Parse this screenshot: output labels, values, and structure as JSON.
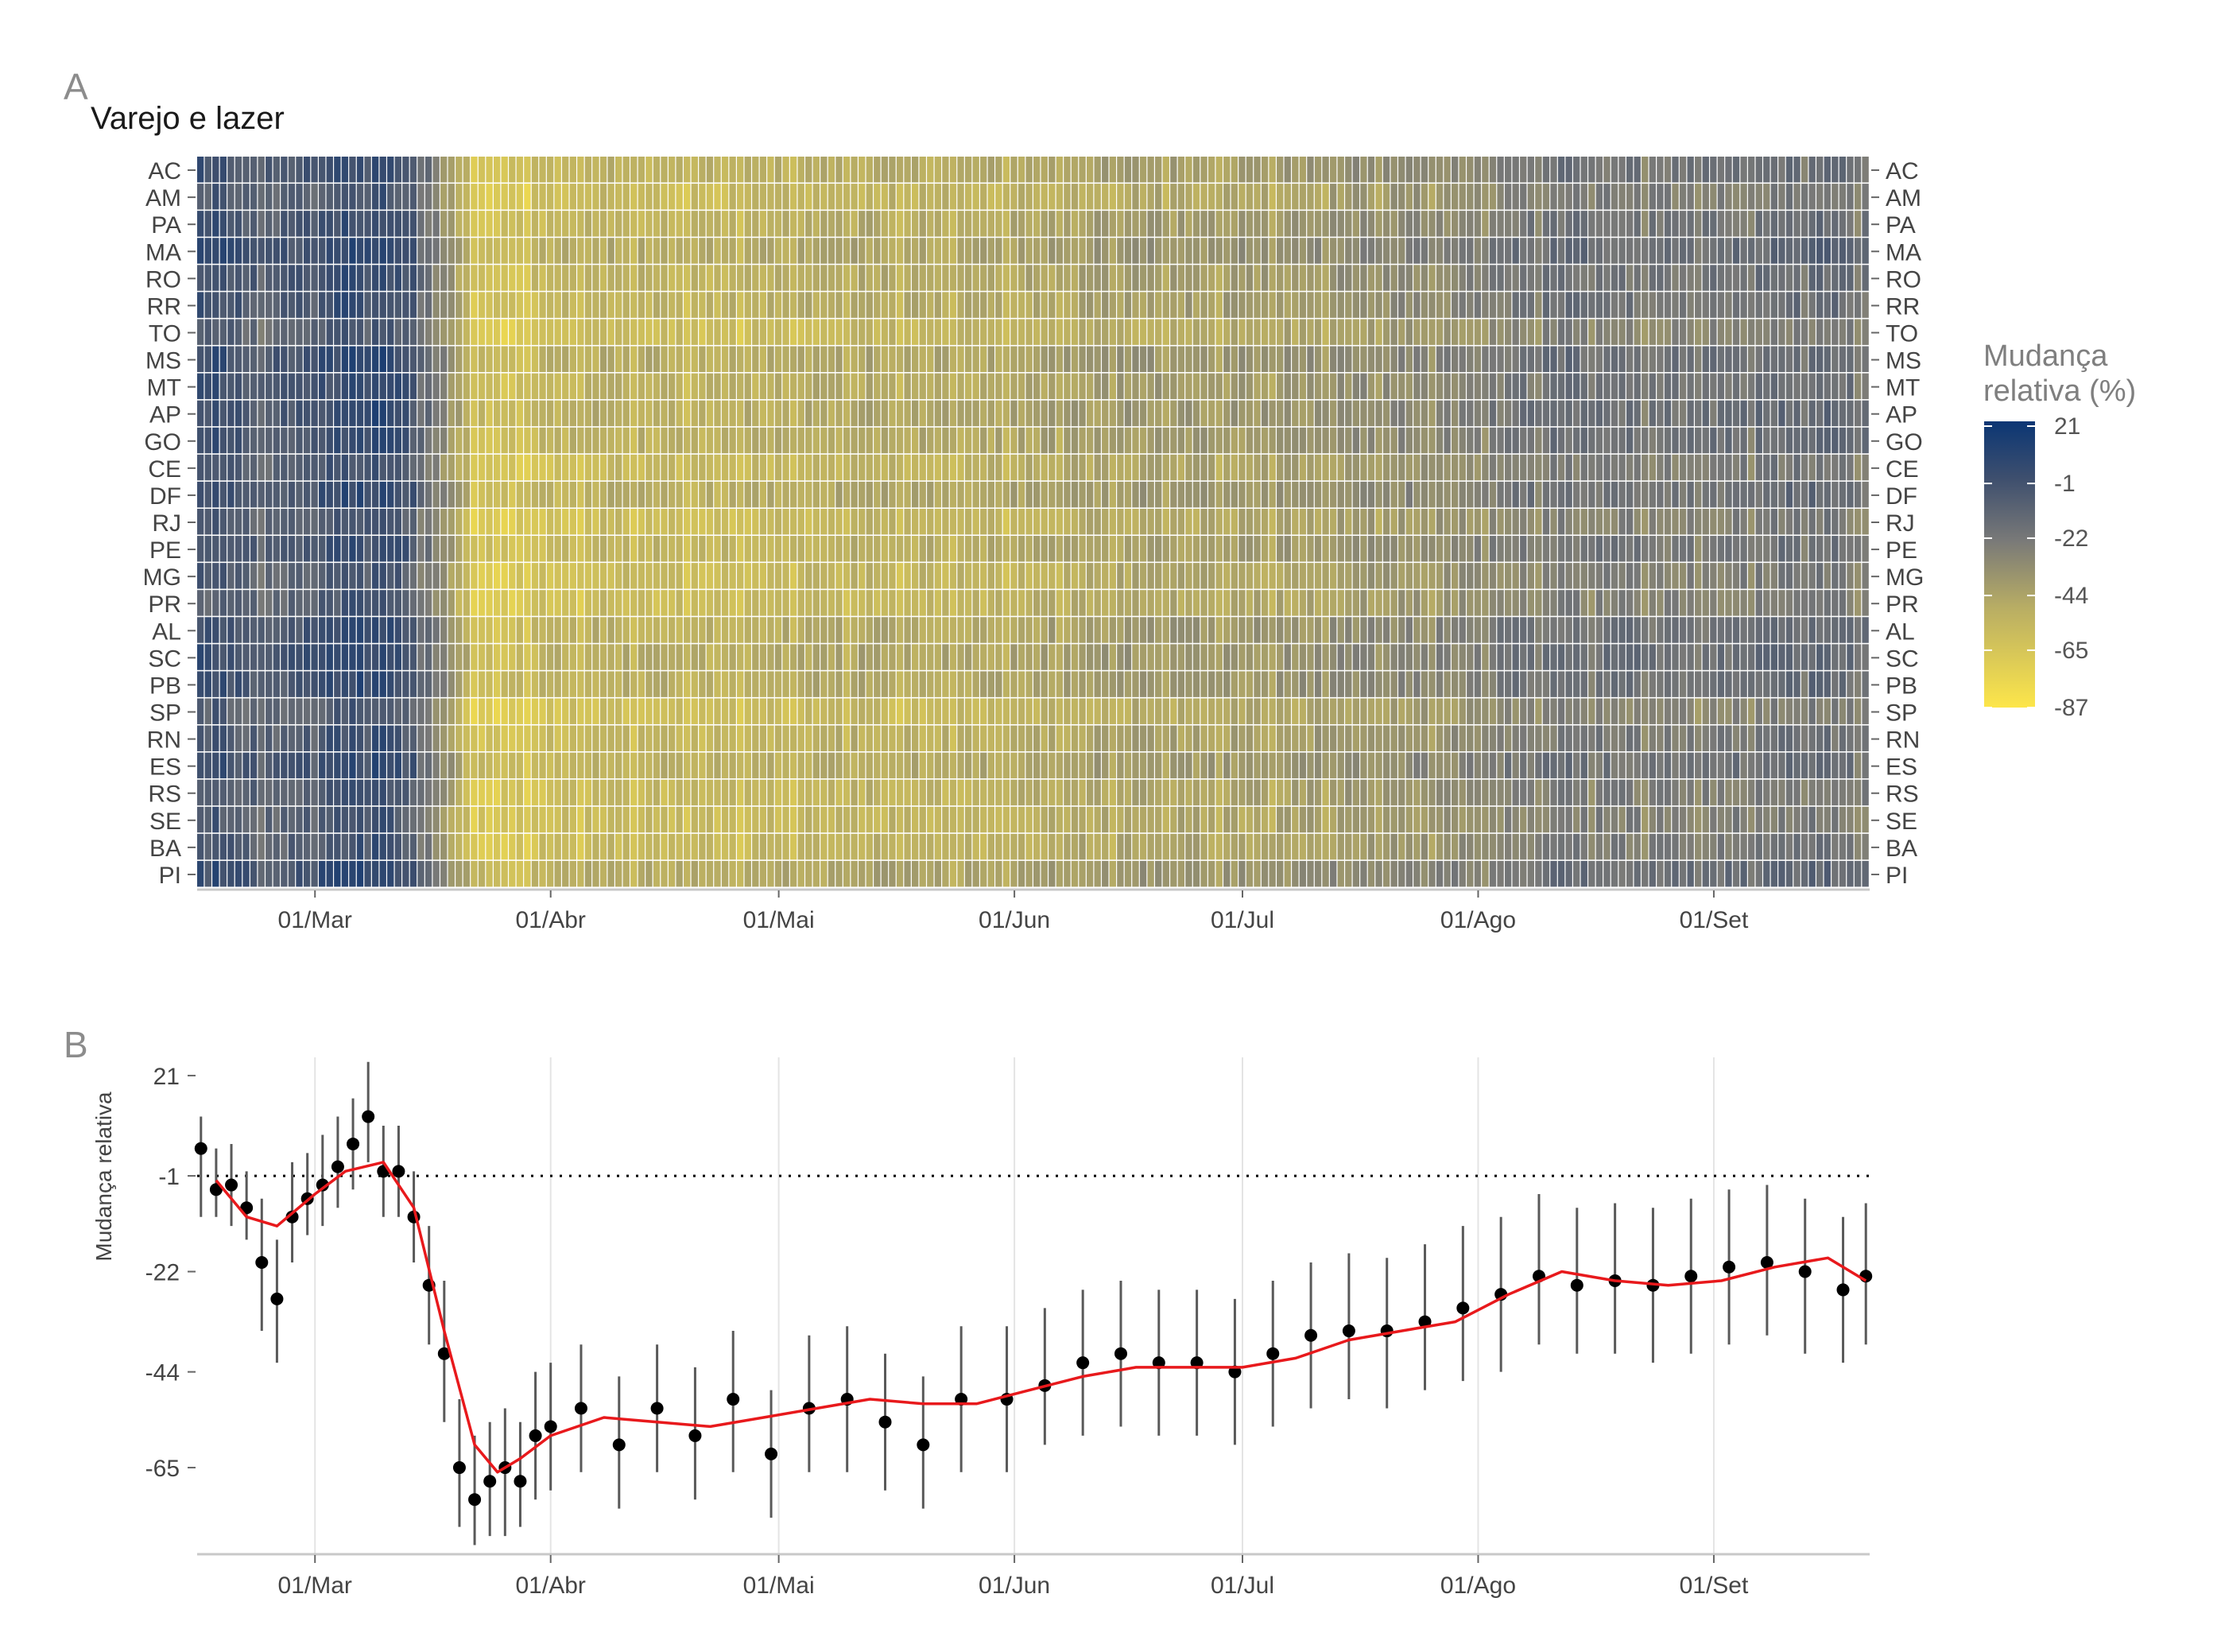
{
  "panel_a": {
    "tag": "A",
    "title": "Varejo e lazer",
    "states": [
      "AC",
      "AM",
      "PA",
      "MA",
      "RO",
      "RR",
      "TO",
      "MS",
      "MT",
      "AP",
      "GO",
      "CE",
      "DF",
      "RJ",
      "PE",
      "MG",
      "PR",
      "AL",
      "SC",
      "PB",
      "SP",
      "RN",
      "ES",
      "RS",
      "SE",
      "BA",
      "PI"
    ],
    "x_ticks": [
      "01/Mar",
      "01/Abr",
      "01/Mai",
      "01/Jun",
      "01/Jul",
      "01/Ago",
      "01/Set"
    ],
    "legend_title": [
      "Mudança",
      "relativa (%)"
    ],
    "legend_ticks": [
      21,
      -1,
      -22,
      -44,
      -65,
      -87
    ],
    "colors": {
      "high": "#0b3674",
      "mid": "#7a7a78",
      "low": "#fde64a",
      "grid": "#ffffff"
    }
  },
  "panel_b": {
    "tag": "B",
    "y_label": "Mudança relativa",
    "y_ticks": [
      21,
      -1,
      -22,
      -44,
      -65
    ],
    "x_ticks": [
      "01/Mar",
      "01/Abr",
      "01/Mai",
      "01/Jun",
      "01/Jul",
      "01/Ago",
      "01/Set"
    ],
    "reference_line": -1,
    "colors": {
      "points": "#000000",
      "range_bars": "#595959",
      "trend": "#e8191c",
      "reference": "#000000"
    }
  },
  "chart_data": [
    {
      "type": "heatmap",
      "title": "Varejo e lazer",
      "x_range": [
        "2020-02-15",
        "2020-09-21"
      ],
      "x_ticks": [
        "01/Mar",
        "01/Abr",
        "01/Mai",
        "01/Jun",
        "01/Jul",
        "01/Ago",
        "01/Set"
      ],
      "y_categories": [
        "AC",
        "AM",
        "PA",
        "MA",
        "RO",
        "RR",
        "TO",
        "MS",
        "MT",
        "AP",
        "GO",
        "CE",
        "DF",
        "RJ",
        "PE",
        "MG",
        "PR",
        "AL",
        "SC",
        "PB",
        "SP",
        "RN",
        "ES",
        "RS",
        "SE",
        "BA",
        "PI"
      ],
      "color_scale": {
        "min": -87,
        "max": 21,
        "ticks": [
          21,
          -1,
          -22,
          -44,
          -65,
          -87
        ]
      },
      "phase_means": [
        {
          "from": "2020-02-15",
          "to": "2020-03-15",
          "value": 3
        },
        {
          "from": "2020-03-20",
          "to": "2020-04-15",
          "value": -65
        },
        {
          "from": "2020-04-15",
          "to": "2020-06-01",
          "value": -55
        },
        {
          "from": "2020-06-01",
          "to": "2020-07-01",
          "value": -42
        },
        {
          "from": "2020-07-01",
          "to": "2020-08-01",
          "value": -32
        },
        {
          "from": "2020-08-01",
          "to": "2020-09-21",
          "value": -25
        }
      ],
      "legend": {
        "title": "Mudança relativa (%)",
        "position": "right"
      }
    },
    {
      "type": "scatter",
      "x_range": [
        "2020-02-15",
        "2020-09-21"
      ],
      "x_ticks": [
        "01/Mar",
        "01/Abr",
        "01/Mai",
        "01/Jun",
        "01/Jul",
        "01/Ago",
        "01/Set"
      ],
      "y_label": "Mudança relativa",
      "y_ticks": [
        21,
        -1,
        -22,
        -44,
        -65
      ],
      "ylim": [
        -84,
        25
      ],
      "reference_line": -1,
      "series": [
        {
          "kind": "points_with_ranges",
          "x": [
            "2020-02-15",
            "2020-02-17",
            "2020-02-19",
            "2020-02-21",
            "2020-02-23",
            "2020-02-25",
            "2020-02-27",
            "2020-02-29",
            "2020-03-02",
            "2020-03-04",
            "2020-03-06",
            "2020-03-08",
            "2020-03-10",
            "2020-03-12",
            "2020-03-14",
            "2020-03-16",
            "2020-03-18",
            "2020-03-20",
            "2020-03-22",
            "2020-03-24",
            "2020-03-26",
            "2020-03-28",
            "2020-03-30",
            "2020-04-01",
            "2020-04-05",
            "2020-04-10",
            "2020-04-15",
            "2020-04-20",
            "2020-04-25",
            "2020-04-30",
            "2020-05-05",
            "2020-05-10",
            "2020-05-15",
            "2020-05-20",
            "2020-05-25",
            "2020-05-31",
            "2020-06-05",
            "2020-06-10",
            "2020-06-15",
            "2020-06-20",
            "2020-06-25",
            "2020-06-30",
            "2020-07-05",
            "2020-07-10",
            "2020-07-15",
            "2020-07-20",
            "2020-07-25",
            "2020-07-30",
            "2020-08-04",
            "2020-08-09",
            "2020-08-14",
            "2020-08-19",
            "2020-08-24",
            "2020-08-29",
            "2020-09-03",
            "2020-09-08",
            "2020-09-13",
            "2020-09-18",
            "2020-09-21"
          ],
          "y": [
            5,
            -4,
            -3,
            -8,
            -20,
            -28,
            -10,
            -6,
            -3,
            1,
            6,
            12,
            0,
            0,
            -10,
            -25,
            -40,
            -65,
            -72,
            -68,
            -65,
            -68,
            -58,
            -56,
            -52,
            -60,
            -52,
            -58,
            -50,
            -62,
            -52,
            -50,
            -55,
            -60,
            -50,
            -50,
            -47,
            -42,
            -40,
            -42,
            -42,
            -44,
            -40,
            -36,
            -35,
            -35,
            -33,
            -30,
            -27,
            -23,
            -25,
            -24,
            -25,
            -23,
            -21,
            -20,
            -22,
            -26,
            -23
          ],
          "low": [
            -10,
            -10,
            -12,
            -15,
            -35,
            -42,
            -20,
            -14,
            -12,
            -8,
            -4,
            2,
            -10,
            -10,
            -20,
            -38,
            -55,
            -78,
            -82,
            -80,
            -80,
            -78,
            -72,
            -70,
            -66,
            -74,
            -66,
            -72,
            -66,
            -76,
            -66,
            -66,
            -70,
            -74,
            -66,
            -66,
            -60,
            -58,
            -56,
            -58,
            -58,
            -60,
            -56,
            -52,
            -50,
            -52,
            -48,
            -46,
            -44,
            -38,
            -40,
            -40,
            -42,
            -40,
            -38,
            -36,
            -40,
            -42,
            -38
          ],
          "high": [
            12,
            5,
            6,
            0,
            -6,
            -15,
            2,
            4,
            8,
            12,
            16,
            24,
            10,
            10,
            0,
            -12,
            -24,
            -50,
            -58,
            -55,
            -52,
            -55,
            -44,
            -42,
            -38,
            -45,
            -38,
            -43,
            -35,
            -48,
            -36,
            -34,
            -40,
            -45,
            -34,
            -34,
            -30,
            -26,
            -24,
            -26,
            -26,
            -28,
            -24,
            -20,
            -18,
            -19,
            -16,
            -12,
            -10,
            -5,
            -8,
            -7,
            -8,
            -6,
            -4,
            -3,
            -6,
            -10,
            -7
          ]
        },
        {
          "kind": "trend",
          "x": [
            "2020-02-17",
            "2020-02-21",
            "2020-02-25",
            "2020-03-01",
            "2020-03-05",
            "2020-03-10",
            "2020-03-14",
            "2020-03-18",
            "2020-03-22",
            "2020-03-25",
            "2020-03-28",
            "2020-04-01",
            "2020-04-08",
            "2020-04-15",
            "2020-04-22",
            "2020-04-29",
            "2020-05-06",
            "2020-05-13",
            "2020-05-20",
            "2020-05-27",
            "2020-06-03",
            "2020-06-10",
            "2020-06-17",
            "2020-06-24",
            "2020-07-01",
            "2020-07-08",
            "2020-07-15",
            "2020-07-22",
            "2020-07-29",
            "2020-08-05",
            "2020-08-12",
            "2020-08-19",
            "2020-08-26",
            "2020-09-02",
            "2020-09-09",
            "2020-09-16",
            "2020-09-21"
          ],
          "y": [
            -2,
            -10,
            -12,
            -5,
            0,
            2,
            -8,
            -35,
            -60,
            -66,
            -63,
            -58,
            -54,
            -55,
            -56,
            -54,
            -52,
            -50,
            -51,
            -51,
            -48,
            -45,
            -43,
            -43,
            -43,
            -41,
            -37,
            -35,
            -33,
            -27,
            -22,
            -24,
            -25,
            -24,
            -21,
            -19,
            -24
          ]
        }
      ]
    }
  ]
}
